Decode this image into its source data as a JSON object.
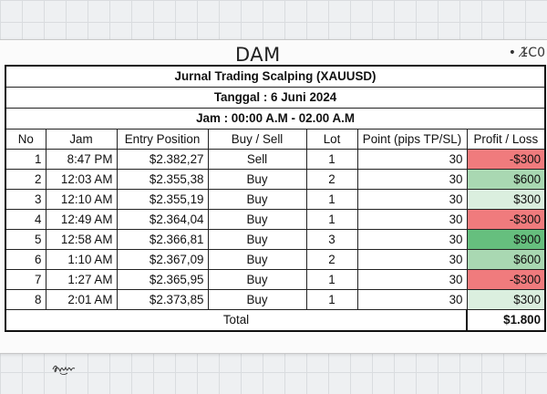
{
  "page": {
    "title": "DAM",
    "corner_note": "• 1̵̸C0",
    "signature": "signature"
  },
  "journal": {
    "title": "Jurnal Trading Scalping (XAUUSD)",
    "date": "Tanggal  : 6 Juni 2024",
    "session": "Jam : 00:00 A.M - 02.00 A.M",
    "headers": {
      "no": "No",
      "time": "Jam",
      "entry": "Entry Position",
      "side": "Buy / Sell",
      "lot": "Lot",
      "points": "Point (pips TP/SL)",
      "pl": "Profit / Loss"
    },
    "rows": [
      {
        "no": "1",
        "time": "8:47 PM",
        "entry": "$2.382,27",
        "side": "Sell",
        "lot": "1",
        "points": "30",
        "pl": "-$300",
        "pl_color": "#f07b7d"
      },
      {
        "no": "2",
        "time": "12:03 AM",
        "entry": "$2.355,38",
        "side": "Buy",
        "lot": "2",
        "points": "30",
        "pl": "$600",
        "pl_color": "#a9d8b2"
      },
      {
        "no": "3",
        "time": "12:10 AM",
        "entry": "$2.355,19",
        "side": "Buy",
        "lot": "1",
        "points": "30",
        "pl": "$300",
        "pl_color": "#dbefdf"
      },
      {
        "no": "4",
        "time": "12:49 AM",
        "entry": "$2.364,04",
        "side": "Buy",
        "lot": "1",
        "points": "30",
        "pl": "-$300",
        "pl_color": "#f07b7d"
      },
      {
        "no": "5",
        "time": "12:58 AM",
        "entry": "$2.366,81",
        "side": "Buy",
        "lot": "3",
        "points": "30",
        "pl": "$900",
        "pl_color": "#66bf7e"
      },
      {
        "no": "6",
        "time": "1:10 AM",
        "entry": "$2.367,09",
        "side": "Buy",
        "lot": "2",
        "points": "30",
        "pl": "$600",
        "pl_color": "#a9d8b2"
      },
      {
        "no": "7",
        "time": "1:27 AM",
        "entry": "$2.365,95",
        "side": "Buy",
        "lot": "1",
        "points": "30",
        "pl": "-$300",
        "pl_color": "#f07b7d"
      },
      {
        "no": "8",
        "time": "2:01 AM",
        "entry": "$2.373,85",
        "side": "Buy",
        "lot": "1",
        "points": "30",
        "pl": "$300",
        "pl_color": "#dbefdf"
      }
    ],
    "total_label": "Total",
    "total_value": "$1.800"
  }
}
